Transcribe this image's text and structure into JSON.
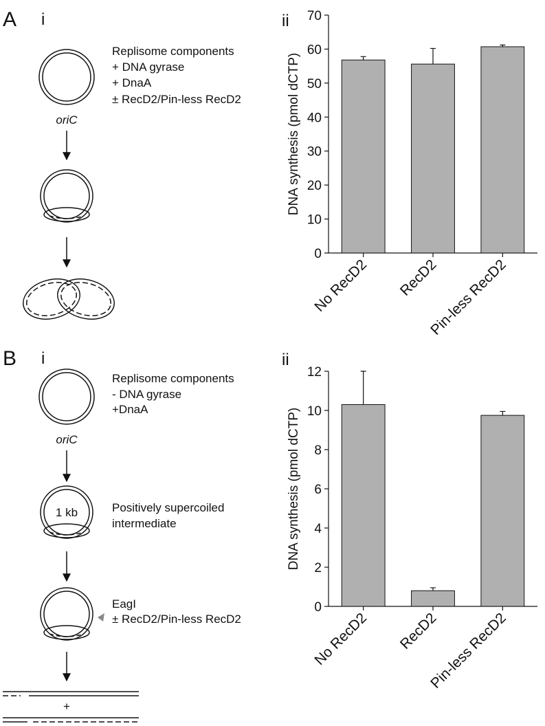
{
  "panels": [
    {
      "label": "A",
      "sub_i": "i",
      "sub_ii": "ii",
      "origin": "oriC",
      "conditions": [
        "Replisome components",
        "+ DNA gyrase",
        "+ DnaA",
        "± RecD2/Pin-less RecD2"
      ]
    },
    {
      "label": "B",
      "sub_i": "i",
      "sub_ii": "ii",
      "origin": "oriC",
      "conditions": [
        "Replisome components",
        "- DNA gyrase",
        "+DnaA"
      ],
      "plasmid_label": "1 kb",
      "intermediate": [
        "Positively supercoiled",
        "intermediate"
      ],
      "cut": [
        "EagI",
        "± RecD2/Pin-less RecD2"
      ],
      "plus": "+"
    }
  ],
  "chart_data": [
    {
      "type": "bar",
      "ylabel": "DNA synthesis (pmol dCTP)",
      "categories": [
        "No RecD2",
        "RecD2",
        "Pin-less RecD2"
      ],
      "values": [
        56.8,
        55.6,
        60.7
      ],
      "errors": [
        1.0,
        4.6,
        0.5
      ],
      "color": "#b0b0b0",
      "ylim": [
        0,
        70
      ],
      "yticks": [
        0,
        10,
        20,
        30,
        40,
        50,
        60,
        70
      ]
    },
    {
      "type": "bar",
      "ylabel": "DNA synthesis (pmol dCTP)",
      "categories": [
        "No RecD2",
        "RecD2",
        "Pin-less RecD2"
      ],
      "values": [
        10.3,
        0.8,
        9.75
      ],
      "errors": [
        1.7,
        0.15,
        0.2
      ],
      "color": "#b0b0b0",
      "ylim": [
        0,
        12
      ],
      "yticks": [
        0,
        2,
        4,
        6,
        8,
        10,
        12
      ]
    }
  ]
}
